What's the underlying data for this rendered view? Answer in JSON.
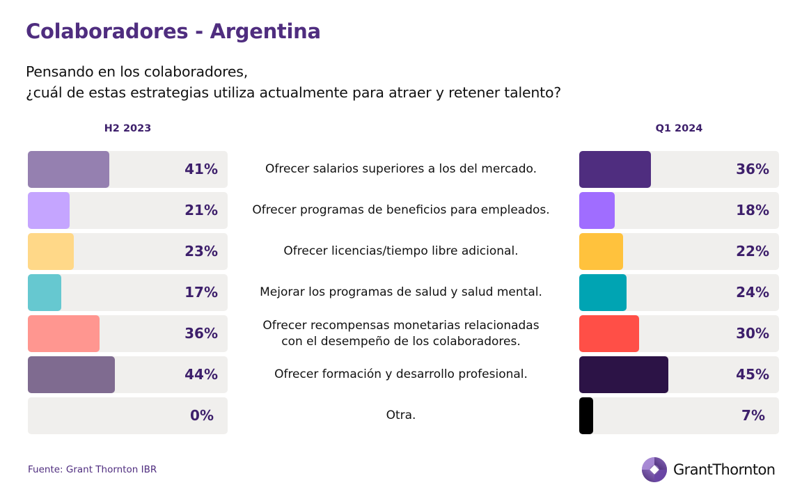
{
  "header": {
    "title": "Colaboradores - Argentina",
    "subtitle_line1": "Pensando en los colaboradores,",
    "subtitle_line2": "¿cuál de estas estrategias utiliza actualmente para atraer y retener talento?"
  },
  "periods": {
    "left": "H2 2023",
    "right": "Q1 2024"
  },
  "rows": [
    {
      "label": "Ofrecer salarios superiores a los del mercado.",
      "left_pct": "41%",
      "right_pct": "36%"
    },
    {
      "label": "Ofrecer programas de beneficios para empleados.",
      "left_pct": "21%",
      "right_pct": "18%"
    },
    {
      "label": "Ofrecer licencias/tiempo libre adicional.",
      "left_pct": "23%",
      "right_pct": "22%"
    },
    {
      "label": "Mejorar los programas de salud y salud mental.",
      "left_pct": "17%",
      "right_pct": "24%"
    },
    {
      "label": "Ofrecer recompensas monetarias relacionadas con el desempeño de los colaboradores.",
      "left_pct": "36%",
      "right_pct": "30%"
    },
    {
      "label": "Ofrecer formación y desarrollo profesional.",
      "left_pct": "44%",
      "right_pct": "45%"
    },
    {
      "label": "Otra.",
      "left_pct": "0%",
      "right_pct": "7%"
    }
  ],
  "colors": {
    "brand_purple": "#4f2d7f",
    "track": "#f0efed",
    "left_series": [
      "#9580b0",
      "#c5a5ff",
      "#ffd888",
      "#66c8d0",
      "#ff9690",
      "#7f6b90",
      "#9580b0"
    ],
    "right_series": [
      "#4f2d7f",
      "#a06dff",
      "#ffc23d",
      "#00a4b3",
      "#ff4f47",
      "#2c1346",
      "#000000"
    ]
  },
  "footer": {
    "source": "Fuente: Grant Thornton IBR",
    "logo_text": "GrantThornton"
  },
  "chart_data": {
    "type": "bar",
    "orientation": "horizontal",
    "title": "Colaboradores - Argentina",
    "subtitle": "Pensando en los colaboradores, ¿cuál de estas estrategias utiliza actualmente para atraer y retener talento?",
    "categories": [
      "Ofrecer salarios superiores a los del mercado.",
      "Ofrecer programas de beneficios para empleados.",
      "Ofrecer licencias/tiempo libre adicional.",
      "Mejorar los programas de salud y salud mental.",
      "Ofrecer recompensas monetarias relacionadas con el desempeño de los colaboradores.",
      "Ofrecer formación y desarrollo profesional.",
      "Otra."
    ],
    "series": [
      {
        "name": "H2 2023",
        "values": [
          41,
          21,
          23,
          17,
          36,
          44,
          0
        ]
      },
      {
        "name": "Q1 2024",
        "values": [
          36,
          18,
          22,
          24,
          30,
          45,
          7
        ]
      }
    ],
    "xlabel": "",
    "ylabel": "",
    "unit": "%",
    "xlim": [
      0,
      100
    ],
    "grid": false,
    "legend": "column headers above each panel",
    "source": "Fuente: Grant Thornton IBR"
  }
}
